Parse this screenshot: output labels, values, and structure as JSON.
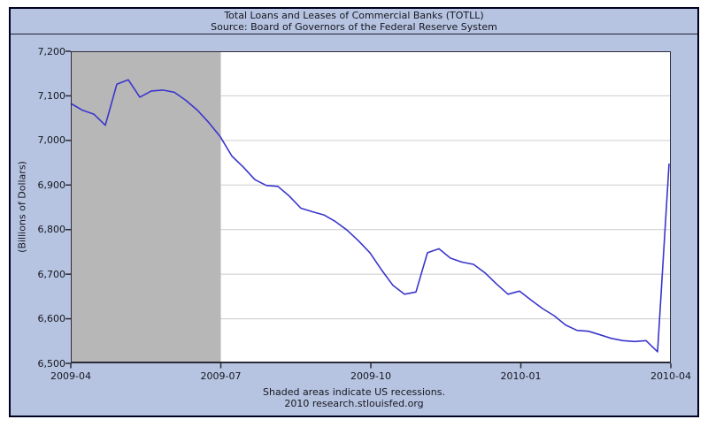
{
  "header": {
    "title": "Total Loans and Leases of Commercial Banks (TOTLL)",
    "source": "Source: Board of Governors of the Federal Reserve System"
  },
  "y_axis": {
    "title": "(Billions of Dollars)",
    "tick_labels": [
      "7,200",
      "7,100",
      "7,000",
      "6,900",
      "6,800",
      "6,700",
      "6,600",
      "6,500"
    ]
  },
  "x_axis": {
    "tick_labels": [
      "2009-04",
      "2009-07",
      "2009-10",
      "2010-01",
      "2010-04"
    ]
  },
  "footer": {
    "note": "Shaded areas indicate US recessions.",
    "branding": "2010 research.stlouisfed.org"
  },
  "colors": {
    "panel_bg": "#b6c4e1",
    "panel_border": "#000020",
    "plot_bg": "#ffffff",
    "grid": "#cccccc",
    "recession": "#b7b7b7",
    "line": "#3a35cc",
    "axis": "#2b2b38",
    "text": "#16161f"
  },
  "chart_data": {
    "type": "line",
    "title": "Total Loans and Leases of Commercial Banks (TOTLL)",
    "subtitle": "Source: Board of Governors of the Federal Reserve System",
    "ylabel": "(Billions of Dollars)",
    "ylim": [
      6500,
      7200
    ],
    "y_tick_step": 100,
    "x_range": [
      "2009-04",
      "2010-04"
    ],
    "x_tick_labels": [
      "2009-04",
      "2009-07",
      "2009-10",
      "2010-01",
      "2010-04"
    ],
    "frequency": "weekly",
    "grid": "horizontal-only",
    "recession_fraction": [
      0,
      0.25
    ],
    "annotation": "Shaded areas indicate US recessions.",
    "series": [
      {
        "name": "TOTLL",
        "values": [
          7083,
          7068,
          7059,
          7034,
          7126,
          7136,
          7097,
          7111,
          7113,
          7108,
          7090,
          7068,
          7040,
          7008,
          6965,
          6940,
          6912,
          6899,
          6897,
          6875,
          6848,
          6840,
          6833,
          6818,
          6799,
          6775,
          6748,
          6710,
          6675,
          6655,
          6660,
          6748,
          6757,
          6736,
          6727,
          6722,
          6703,
          6678,
          6655,
          6662,
          6642,
          6623,
          6607,
          6586,
          6574,
          6572,
          6564,
          6556,
          6551,
          6549,
          6551,
          6526,
          6948
        ]
      }
    ]
  }
}
